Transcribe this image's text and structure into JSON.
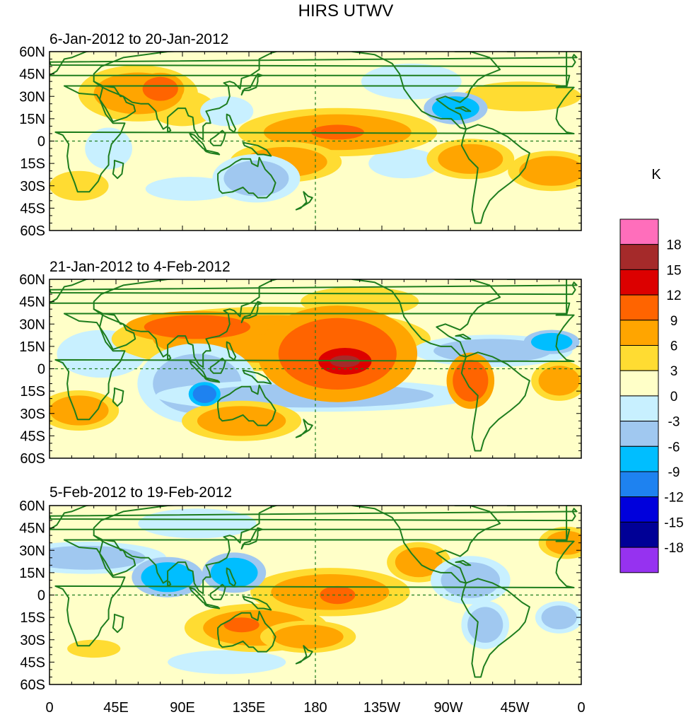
{
  "chart_data": {
    "type": "heatmap",
    "title": "HIRS UTWV",
    "units": "K",
    "y_ticks": [
      "60N",
      "45N",
      "30N",
      "15N",
      "0",
      "15S",
      "30S",
      "45S",
      "60S"
    ],
    "y_values": [
      60,
      45,
      30,
      15,
      0,
      -15,
      -30,
      -45,
      -60
    ],
    "x_ticks": [
      "0",
      "45E",
      "90E",
      "135E",
      "180",
      "135W",
      "90W",
      "45W",
      "0"
    ],
    "x_values": [
      0,
      45,
      90,
      135,
      180,
      225,
      270,
      315,
      360
    ],
    "xlim": [
      0,
      360
    ],
    "ylim": [
      -60,
      60
    ],
    "colorbar": {
      "levels": [
        "18",
        "15",
        "12",
        "9",
        "6",
        "3",
        "0",
        "-3",
        "-6",
        "-9",
        "-12",
        "-15",
        "-18"
      ],
      "colors": [
        "#ff6ebb",
        "#a52a2a",
        "#dc0000",
        "#ff6400",
        "#ffa500",
        "#ffdc32",
        "#ffffc8",
        "#c8f0ff",
        "#a0c8f0",
        "#00beff",
        "#1e82f0",
        "#0000dc",
        "#000096",
        "#9632f0"
      ]
    },
    "panels": [
      {
        "label": "6-Jan-2012 to 20-Jan-2012",
        "anomalies": [
          {
            "lon": 60,
            "lat": 32,
            "w": 30,
            "h": 14,
            "v": 6
          },
          {
            "lon": 75,
            "lat": 35,
            "w": 12,
            "h": 8,
            "v": 9
          },
          {
            "lon": 90,
            "lat": 22,
            "w": 22,
            "h": 12,
            "v": 3
          },
          {
            "lon": 120,
            "lat": 20,
            "w": 18,
            "h": 10,
            "v": -3
          },
          {
            "lon": 40,
            "lat": -5,
            "w": 16,
            "h": 14,
            "v": -3
          },
          {
            "lon": 195,
            "lat": 6,
            "w": 50,
            "h": 12,
            "v": 6
          },
          {
            "lon": 195,
            "lat": 6,
            "w": 18,
            "h": 5,
            "v": 9
          },
          {
            "lon": 205,
            "lat": 15,
            "w": 24,
            "h": 6,
            "v": 3
          },
          {
            "lon": 160,
            "lat": -14,
            "w": 28,
            "h": 10,
            "v": 6
          },
          {
            "lon": 140,
            "lat": -25,
            "w": 22,
            "h": 12,
            "v": -6
          },
          {
            "lon": 275,
            "lat": 22,
            "w": 16,
            "h": 8,
            "v": -9
          },
          {
            "lon": 240,
            "lat": -15,
            "w": 24,
            "h": 10,
            "v": -3
          },
          {
            "lon": 285,
            "lat": -12,
            "w": 22,
            "h": 10,
            "v": 6
          },
          {
            "lon": 340,
            "lat": -20,
            "w": 22,
            "h": 10,
            "v": 6
          },
          {
            "lon": 20,
            "lat": -30,
            "w": 20,
            "h": 10,
            "v": 3
          },
          {
            "lon": 95,
            "lat": -32,
            "w": 30,
            "h": 8,
            "v": -3
          },
          {
            "lon": 320,
            "lat": 30,
            "w": 40,
            "h": 10,
            "v": 3
          },
          {
            "lon": 245,
            "lat": 40,
            "w": 34,
            "h": 12,
            "v": -3
          }
        ]
      },
      {
        "label": "21-Jan-2012 to 4-Feb-2012",
        "anomalies": [
          {
            "lon": 150,
            "lat": 20,
            "w": 80,
            "h": 16,
            "v": 6
          },
          {
            "lon": 195,
            "lat": 10,
            "w": 40,
            "h": 24,
            "v": 9
          },
          {
            "lon": 200,
            "lat": 5,
            "w": 18,
            "h": 9,
            "v": 12
          },
          {
            "lon": 200,
            "lat": 5,
            "w": 10,
            "h": 4,
            "v": 15
          },
          {
            "lon": 100,
            "lat": 28,
            "w": 36,
            "h": 8,
            "v": 9
          },
          {
            "lon": 100,
            "lat": -10,
            "w": 30,
            "h": 20,
            "v": -6
          },
          {
            "lon": 105,
            "lat": -17,
            "w": 8,
            "h": 6,
            "v": -12
          },
          {
            "lon": 180,
            "lat": -18,
            "w": 80,
            "h": 8,
            "v": -6
          },
          {
            "lon": 285,
            "lat": -8,
            "w": 12,
            "h": 14,
            "v": 9
          },
          {
            "lon": 345,
            "lat": -8,
            "w": 14,
            "h": 10,
            "v": 6
          },
          {
            "lon": 300,
            "lat": 12,
            "w": 40,
            "h": 8,
            "v": -6
          },
          {
            "lon": 340,
            "lat": 18,
            "w": 14,
            "h": 6,
            "v": -9
          },
          {
            "lon": 35,
            "lat": 10,
            "w": 30,
            "h": 16,
            "v": -3
          },
          {
            "lon": 20,
            "lat": -28,
            "w": 20,
            "h": 10,
            "v": 6
          },
          {
            "lon": 130,
            "lat": -35,
            "w": 30,
            "h": 10,
            "v": 6
          },
          {
            "lon": 210,
            "lat": 45,
            "w": 40,
            "h": 10,
            "v": 3
          }
        ]
      },
      {
        "label": "5-Feb-2012 to 19-Feb-2012",
        "anomalies": [
          {
            "lon": 25,
            "lat": 25,
            "w": 40,
            "h": 8,
            "v": -6
          },
          {
            "lon": 80,
            "lat": 12,
            "w": 18,
            "h": 10,
            "v": -9
          },
          {
            "lon": 125,
            "lat": 15,
            "w": 16,
            "h": 10,
            "v": -9
          },
          {
            "lon": 190,
            "lat": 2,
            "w": 40,
            "h": 12,
            "v": 6
          },
          {
            "lon": 195,
            "lat": 0,
            "w": 12,
            "h": 6,
            "v": 9
          },
          {
            "lon": 250,
            "lat": 22,
            "w": 16,
            "h": 10,
            "v": 6
          },
          {
            "lon": 140,
            "lat": -22,
            "w": 36,
            "h": 12,
            "v": 6
          },
          {
            "lon": 130,
            "lat": -20,
            "w": 12,
            "h": 5,
            "v": 9
          },
          {
            "lon": 175,
            "lat": -28,
            "w": 24,
            "h": 8,
            "v": 6
          },
          {
            "lon": 285,
            "lat": 10,
            "w": 20,
            "h": 12,
            "v": -6
          },
          {
            "lon": 295,
            "lat": -20,
            "w": 12,
            "h": 12,
            "v": -6
          },
          {
            "lon": 345,
            "lat": -15,
            "w": 12,
            "h": 8,
            "v": -6
          },
          {
            "lon": 30,
            "lat": -36,
            "w": 18,
            "h": 6,
            "v": 3
          },
          {
            "lon": 120,
            "lat": -45,
            "w": 40,
            "h": 8,
            "v": -3
          },
          {
            "lon": 100,
            "lat": 48,
            "w": 40,
            "h": 10,
            "v": -3
          },
          {
            "lon": 350,
            "lat": 35,
            "w": 14,
            "h": 8,
            "v": 6
          }
        ]
      }
    ]
  }
}
